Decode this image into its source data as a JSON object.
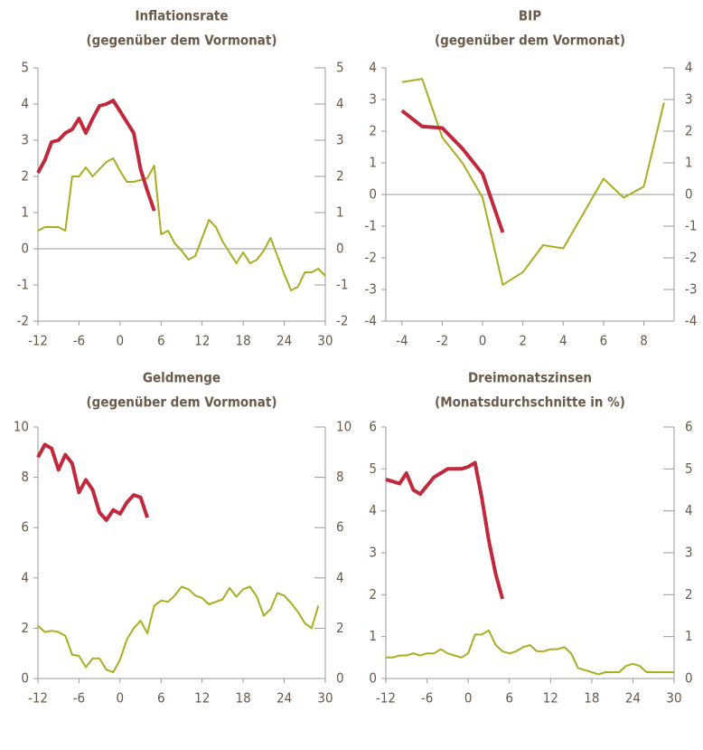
{
  "chart_data": [
    {
      "type": "line",
      "title": "Inflationsrate",
      "subtitle": "(gegenüber dem Vormonat)",
      "x": [
        -12,
        -11,
        -10,
        -9,
        -8,
        -7,
        -6,
        -5,
        -4,
        -3,
        -2,
        -1,
        0,
        1,
        2,
        3,
        4,
        5,
        6,
        7,
        8,
        9,
        10,
        11,
        12,
        13,
        14,
        15,
        16,
        17,
        18,
        19,
        20,
        21,
        22,
        23,
        24,
        25,
        26,
        27,
        28,
        29,
        30
      ],
      "xlim": [
        -12,
        30
      ],
      "xticks": [
        -12,
        -6,
        0,
        6,
        12,
        18,
        24,
        30
      ],
      "ylim": [
        -2,
        5
      ],
      "yticks": [
        -2,
        -1,
        0,
        1,
        2,
        3,
        4,
        5
      ],
      "y2lim": [
        -2,
        5
      ],
      "y2ticks": [
        -2,
        -1,
        0,
        1,
        2,
        3,
        4,
        5
      ],
      "zero_line": true,
      "series": [
        {
          "color": "#a9ad1e",
          "line_width": 2,
          "values": [
            0.5,
            0.6,
            0.6,
            0.6,
            0.5,
            2.0,
            2.0,
            2.25,
            2.0,
            2.2,
            2.4,
            2.5,
            2.15,
            1.85,
            1.85,
            1.9,
            1.95,
            2.3,
            0.4,
            0.5,
            0.15,
            -0.05,
            -0.3,
            -0.2,
            0.3,
            0.8,
            0.6,
            0.2,
            -0.1,
            -0.4,
            -0.1,
            -0.4,
            -0.3,
            -0.05,
            0.3,
            -0.2,
            -0.7,
            -1.15,
            -1.05,
            -0.65,
            -0.65,
            -0.55,
            -0.75
          ]
        },
        {
          "color": "#c0283c",
          "line_width": 4,
          "values": [
            2.1,
            2.45,
            2.95,
            3.0,
            3.2,
            3.3,
            3.6,
            3.2,
            3.6,
            3.95,
            4.0,
            4.1,
            3.8,
            3.5,
            3.2,
            2.2,
            1.6,
            1.05,
            null,
            null,
            null,
            null,
            null,
            null,
            null,
            null,
            null,
            null,
            null,
            null,
            null,
            null,
            null,
            null,
            null,
            null,
            null,
            null,
            null,
            null,
            null,
            null,
            null
          ]
        }
      ]
    },
    {
      "type": "line",
      "title": "BIP",
      "subtitle": "(gegenüber dem Vormonat)",
      "x": [
        -4,
        -3,
        -2,
        -1,
        0,
        1,
        2,
        3,
        4,
        5,
        6,
        7,
        8,
        9
      ],
      "xlim": [
        -4.8,
        9.5
      ],
      "xticks": [
        -4,
        -2,
        0,
        2,
        4,
        6,
        8
      ],
      "ylim": [
        -4,
        4
      ],
      "yticks": [
        -4,
        -3,
        -2,
        -1,
        0,
        1,
        2,
        3,
        4
      ],
      "y2lim": [
        -4,
        4
      ],
      "y2ticks": [
        -4,
        -3,
        -2,
        -1,
        0,
        1,
        2,
        3,
        4
      ],
      "zero_line": true,
      "series": [
        {
          "color": "#a9ad1e",
          "line_width": 2,
          "values": [
            3.55,
            3.65,
            1.8,
            1.0,
            -0.1,
            -2.85,
            -2.45,
            -1.6,
            -1.7,
            -0.6,
            0.5,
            -0.1,
            0.25,
            2.9
          ]
        },
        {
          "color": "#c0283c",
          "line_width": 4,
          "values": [
            2.65,
            2.15,
            2.1,
            1.45,
            0.65,
            -1.2,
            null,
            null,
            null,
            null,
            null,
            null,
            null,
            null
          ]
        }
      ]
    },
    {
      "type": "line",
      "title": "Geldmenge",
      "subtitle": "(gegenüber dem Vormonat)",
      "x": [
        -12,
        -11,
        -10,
        -9,
        -8,
        -7,
        -6,
        -5,
        -4,
        -3,
        -2,
        -1,
        0,
        1,
        2,
        3,
        4,
        5,
        6,
        7,
        8,
        9,
        10,
        11,
        12,
        13,
        14,
        15,
        16,
        17,
        18,
        19,
        20,
        21,
        22,
        23,
        24,
        25,
        26,
        27,
        28,
        29
      ],
      "xlim": [
        -12,
        30
      ],
      "xticks": [
        -12,
        -6,
        0,
        6,
        12,
        18,
        24,
        30
      ],
      "ylim": [
        0,
        10
      ],
      "yticks": [
        0,
        2,
        4,
        6,
        8,
        10
      ],
      "y2lim": [
        0,
        10
      ],
      "y2ticks": [
        0,
        2,
        4,
        6,
        8,
        10
      ],
      "zero_line": false,
      "series": [
        {
          "color": "#a9ad1e",
          "line_width": 2,
          "values": [
            2.1,
            1.85,
            1.9,
            1.85,
            1.7,
            0.95,
            0.9,
            0.45,
            0.8,
            0.8,
            0.35,
            0.25,
            0.75,
            1.55,
            2.0,
            2.3,
            1.8,
            2.9,
            3.1,
            3.05,
            3.3,
            3.65,
            3.55,
            3.3,
            3.2,
            2.95,
            3.05,
            3.15,
            3.6,
            3.25,
            3.55,
            3.65,
            3.25,
            2.5,
            2.75,
            3.4,
            3.3,
            3.0,
            2.65,
            2.2,
            2.0,
            2.9
          ]
        },
        {
          "color": "#c0283c",
          "line_width": 4,
          "values": [
            8.8,
            9.3,
            9.15,
            8.3,
            8.9,
            8.55,
            7.4,
            7.9,
            7.5,
            6.6,
            6.3,
            6.7,
            6.55,
            7.0,
            7.3,
            7.2,
            6.4,
            null,
            null,
            null,
            null,
            null,
            null,
            null,
            null,
            null,
            null,
            null,
            null,
            null,
            null,
            null,
            null,
            null,
            null,
            null,
            null,
            null,
            null,
            null,
            null,
            null
          ]
        }
      ]
    },
    {
      "type": "line",
      "title": "Dreimonatszinsen",
      "subtitle": "(Monatsdurchschnitte in %)",
      "x": [
        -12,
        -11,
        -10,
        -9,
        -8,
        -7,
        -6,
        -5,
        -4,
        -3,
        -2,
        -1,
        0,
        1,
        2,
        3,
        4,
        5,
        6,
        7,
        8,
        9,
        10,
        11,
        12,
        13,
        14,
        15,
        16,
        17,
        18,
        19,
        20,
        21,
        22,
        23,
        24,
        25,
        26,
        27,
        28,
        29,
        30
      ],
      "xlim": [
        -12,
        30
      ],
      "xticks": [
        -12,
        -6,
        0,
        6,
        12,
        18,
        24,
        30
      ],
      "ylim": [
        0,
        6
      ],
      "yticks": [
        0,
        1,
        2,
        3,
        4,
        5,
        6
      ],
      "y2lim": [
        0,
        6
      ],
      "y2ticks": [
        0,
        1,
        2,
        3,
        4,
        5,
        6
      ],
      "zero_line": false,
      "series": [
        {
          "color": "#a9ad1e",
          "line_width": 2,
          "values": [
            0.5,
            0.5,
            0.55,
            0.55,
            0.6,
            0.55,
            0.6,
            0.6,
            0.7,
            0.6,
            0.55,
            0.5,
            0.6,
            1.05,
            1.05,
            1.15,
            0.8,
            0.65,
            0.6,
            0.65,
            0.75,
            0.8,
            0.65,
            0.65,
            0.7,
            0.7,
            0.75,
            0.6,
            0.25,
            0.2,
            0.15,
            0.1,
            0.15,
            0.15,
            0.15,
            0.3,
            0.35,
            0.3,
            0.15,
            0.15,
            0.15,
            0.15,
            0.15
          ]
        },
        {
          "color": "#c0283c",
          "line_width": 4,
          "values": [
            4.75,
            4.7,
            4.65,
            4.9,
            4.5,
            4.4,
            4.6,
            4.8,
            4.9,
            5.0,
            5.0,
            5.0,
            5.05,
            5.15,
            4.3,
            3.3,
            2.5,
            1.9,
            null,
            null,
            null,
            null,
            null,
            null,
            null,
            null,
            null,
            null,
            null,
            null,
            null,
            null,
            null,
            null,
            null,
            null,
            null,
            null,
            null,
            null,
            null,
            null,
            null
          ]
        }
      ]
    }
  ]
}
